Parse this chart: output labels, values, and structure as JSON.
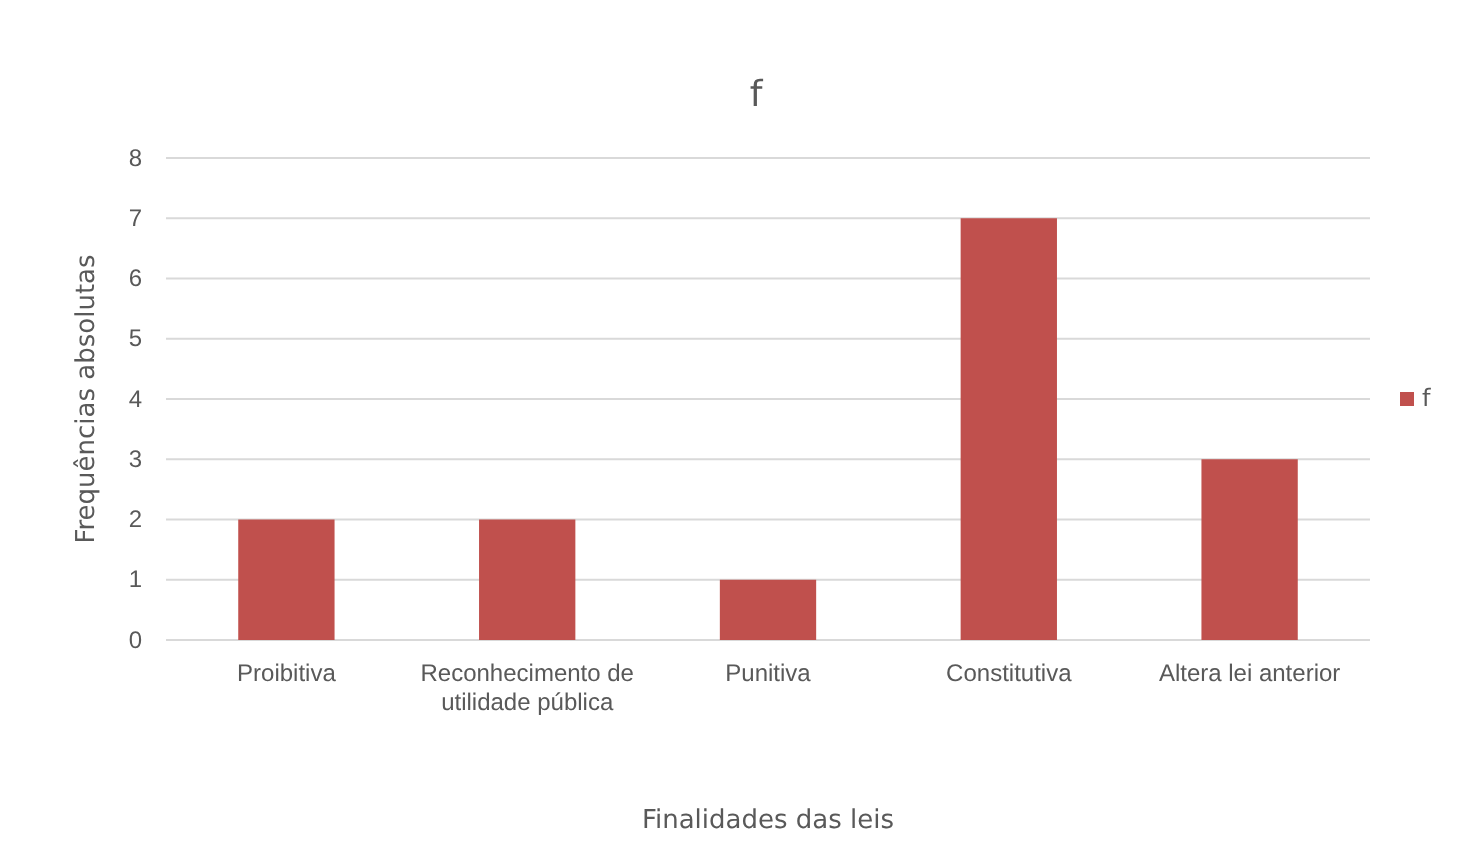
{
  "chart_data": {
    "type": "bar",
    "title": "f",
    "xlabel": "Finalidades das leis",
    "ylabel": "Frequências absolutas",
    "categories": [
      "Proibitiva",
      "Reconhecimento de utilidade pública",
      "Punitiva",
      "Constitutiva",
      "Altera lei anterior"
    ],
    "series": [
      {
        "name": "f",
        "color": "#c0504d",
        "values": [
          2,
          2,
          1,
          7,
          3
        ]
      }
    ],
    "ylim": [
      0,
      8
    ],
    "yticks": [
      0,
      1,
      2,
      3,
      4,
      5,
      6,
      7,
      8
    ],
    "grid": "y",
    "legend": "right"
  }
}
